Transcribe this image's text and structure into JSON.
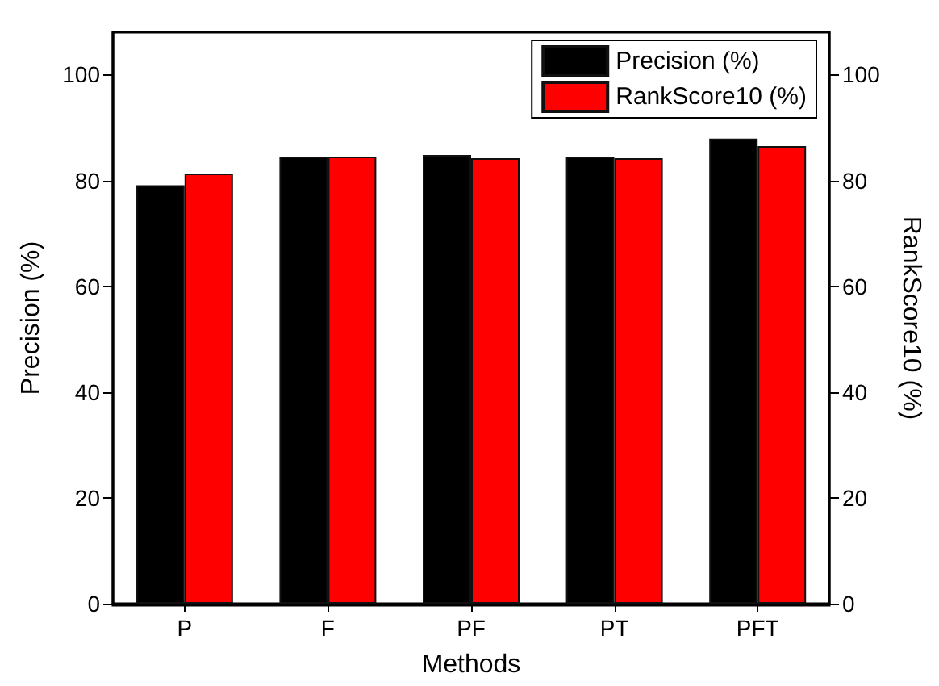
{
  "chart_data": {
    "type": "bar",
    "xlabel": "Methods",
    "ylabel": "Precision (%)",
    "y2label": "RankScore10 (%)",
    "categories": [
      "P",
      "F",
      "PF",
      "PT",
      "PFT"
    ],
    "series": [
      {
        "name": "Precision (%)",
        "color": "#000000",
        "values": [
          79.1,
          84.5,
          84.8,
          84.5,
          87.9
        ]
      },
      {
        "name": "RankScore10 (%)",
        "color": "#ff0000",
        "values": [
          81.3,
          84.5,
          84.2,
          84.2,
          86.5
        ]
      }
    ],
    "ylim": [
      0,
      108
    ],
    "yticks": [
      0,
      20,
      40,
      60,
      80,
      100
    ],
    "y2lim": [
      0,
      108
    ],
    "y2ticks": [
      0,
      20,
      40,
      60,
      80,
      100
    ],
    "grid": false,
    "legend": "top right"
  }
}
